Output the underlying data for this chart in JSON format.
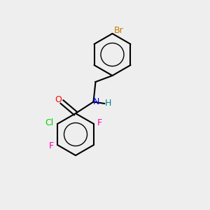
{
  "bg_color": "#eeeeee",
  "bond_color": "#000000",
  "atom_colors": {
    "O": "#ff0000",
    "N": "#0000ff",
    "H": "#008080",
    "Cl": "#00cc00",
    "F_right": "#ff00aa",
    "F_left": "#ff00aa",
    "Br": "#cc7700"
  },
  "font_size": 9,
  "title": ""
}
